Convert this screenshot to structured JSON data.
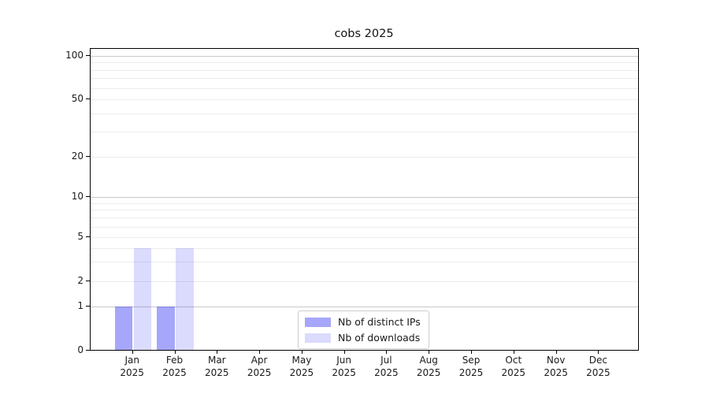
{
  "figure": {
    "title": "cobs 2025"
  },
  "chart_data": {
    "type": "bar",
    "title": "cobs 2025",
    "x": {
      "categories": [
        "Jan",
        "Feb",
        "Mar",
        "Apr",
        "May",
        "Jun",
        "Jul",
        "Aug",
        "Sep",
        "Oct",
        "Nov",
        "Dec"
      ],
      "year_label": "2025"
    },
    "series": [
      {
        "name": "Nb of distinct IPs",
        "color": "rgba(0,0,240,0.35)",
        "values": [
          1,
          1,
          0,
          0,
          0,
          0,
          0,
          0,
          0,
          0,
          0,
          0
        ]
      },
      {
        "name": "Nb of downloads",
        "color": "rgba(0,0,240,0.14)",
        "values": [
          4,
          4,
          0,
          0,
          0,
          0,
          0,
          0,
          0,
          0,
          0,
          0
        ]
      }
    ],
    "yaxis": {
      "scale": "log-with-zero",
      "range": [
        0,
        100
      ],
      "tick_values": [
        0,
        1,
        2,
        5,
        10,
        20,
        50,
        100
      ],
      "tick_labels": [
        "0",
        "1",
        "2",
        "5",
        "10",
        "20",
        "50",
        "100"
      ],
      "major_grid_values": [
        1,
        10,
        100
      ],
      "minor_grid_values": [
        2,
        3,
        4,
        5,
        6,
        7,
        8,
        9,
        20,
        30,
        40,
        50,
        60,
        70,
        80,
        90
      ]
    },
    "legend": {
      "position": "lower center",
      "entries": [
        "Nb of distinct IPs",
        "Nb of downloads"
      ]
    },
    "grid": true
  }
}
